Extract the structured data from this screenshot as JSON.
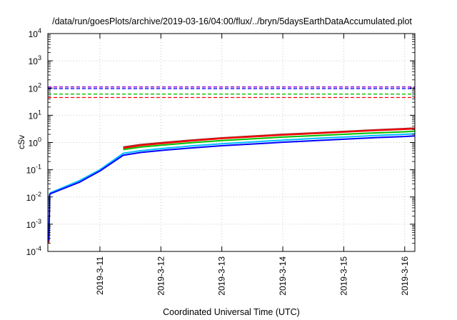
{
  "chart_data": {
    "type": "line",
    "title": "/data/run/goesPlots/archive/2019-03-16/04:00/flux/../bryn/5daysEarthDataAccumulated.plot",
    "xlabel": "Coordinated Universal Time (UTC)",
    "ylabel": "cSv",
    "yscale": "log",
    "ylim": [
      0.0001,
      10000
    ],
    "xlim": [
      "2019-03-10T03:30",
      "2019-03-16T04:00"
    ],
    "grid": true,
    "legend": "none",
    "x_ticks": [
      {
        "label": "2019-3-11",
        "t": "2019-03-11T00:00"
      },
      {
        "label": "2019-3-12",
        "t": "2019-03-12T00:00"
      },
      {
        "label": "2019-3-13",
        "t": "2019-03-13T00:00"
      },
      {
        "label": "2019-3-14",
        "t": "2019-03-14T00:00"
      },
      {
        "label": "2019-3-15",
        "t": "2019-03-15T00:00"
      },
      {
        "label": "2019-3-16",
        "t": "2019-03-16T00:00"
      }
    ],
    "y_ticks": [
      {
        "base": "10",
        "exp": "-4",
        "value": 0.0001
      },
      {
        "base": "10",
        "exp": "-3",
        "value": 0.001
      },
      {
        "base": "10",
        "exp": "-2",
        "value": 0.01
      },
      {
        "base": "10",
        "exp": "-1",
        "value": 0.1
      },
      {
        "base": "10",
        "exp": "0",
        "value": 1
      },
      {
        "base": "10",
        "exp": "1",
        "value": 10
      },
      {
        "base": "10",
        "exp": "2",
        "value": 100
      },
      {
        "base": "10",
        "exp": "3",
        "value": 1000
      },
      {
        "base": "10",
        "exp": "4",
        "value": 10000
      }
    ],
    "thresholds": [
      {
        "color": "#9400d3",
        "value": 110
      },
      {
        "color": "#0000ff",
        "value": 95
      },
      {
        "color": "#00c000",
        "value": 60
      },
      {
        "color": "#ff0000",
        "value": 45
      }
    ],
    "series": [
      {
        "color": "#a52a2a",
        "segments": [
          [
            [
              "2019-03-10T03:50",
              0.0002
            ],
            [
              "2019-03-10T04:00",
              0.0003
            ],
            [
              "2019-03-10T04:10",
              0.011
            ],
            [
              "2019-03-10T04:20",
              0.013
            ]
          ],
          [
            [
              "2019-03-11T09:10",
              0.68
            ],
            [
              "2019-03-11T16:00",
              0.84
            ],
            [
              "2019-03-12T02:00",
              1.02
            ],
            [
              "2019-03-12T13:00",
              1.25
            ],
            [
              "2019-03-13T00:00",
              1.48
            ],
            [
              "2019-03-13T12:00",
              1.72
            ],
            [
              "2019-03-14T00:00",
              2.0
            ],
            [
              "2019-03-14T12:00",
              2.25
            ],
            [
              "2019-03-15T00:00",
              2.55
            ],
            [
              "2019-03-15T12:00",
              2.9
            ],
            [
              "2019-03-16T00:00",
              3.25
            ],
            [
              "2019-03-16T04:00",
              3.4
            ]
          ]
        ]
      },
      {
        "color": "#ff0000",
        "segments": [
          [
            [
              "2019-03-10T03:50",
              0.00025
            ],
            [
              "2019-03-10T04:00",
              0.0004
            ],
            [
              "2019-03-10T04:10",
              0.012
            ],
            [
              "2019-03-10T04:20",
              0.0135
            ]
          ],
          [
            [
              "2019-03-11T09:10",
              0.62
            ],
            [
              "2019-03-11T16:00",
              0.78
            ],
            [
              "2019-03-12T02:00",
              0.95
            ],
            [
              "2019-03-12T13:00",
              1.17
            ],
            [
              "2019-03-13T00:00",
              1.4
            ],
            [
              "2019-03-13T12:00",
              1.62
            ],
            [
              "2019-03-14T00:00",
              1.88
            ],
            [
              "2019-03-14T12:00",
              2.12
            ],
            [
              "2019-03-15T00:00",
              2.42
            ],
            [
              "2019-03-15T12:00",
              2.75
            ],
            [
              "2019-03-16T00:00",
              3.05
            ],
            [
              "2019-03-16T04:00",
              3.2
            ]
          ]
        ]
      },
      {
        "color": "#00c000",
        "segments": [
          [
            [
              "2019-03-10T03:50",
              0.0003
            ],
            [
              "2019-03-10T04:00",
              0.001
            ],
            [
              "2019-03-10T04:10",
              0.012
            ],
            [
              "2019-03-10T04:20",
              0.014
            ]
          ],
          [
            [
              "2019-03-11T09:10",
              0.55
            ],
            [
              "2019-03-11T16:00",
              0.68
            ],
            [
              "2019-03-12T02:00",
              0.82
            ],
            [
              "2019-03-12T13:00",
              1.0
            ],
            [
              "2019-03-13T00:00",
              1.18
            ],
            [
              "2019-03-13T12:00",
              1.36
            ],
            [
              "2019-03-14T00:00",
              1.58
            ],
            [
              "2019-03-14T12:00",
              1.78
            ],
            [
              "2019-03-15T00:00",
              2.0
            ],
            [
              "2019-03-15T12:00",
              2.25
            ],
            [
              "2019-03-16T00:00",
              2.48
            ],
            [
              "2019-03-16T04:00",
              2.6
            ]
          ]
        ]
      },
      {
        "color": "#00bfff",
        "segments": [
          [
            [
              "2019-03-10T03:50",
              0.0003
            ],
            [
              "2019-03-10T04:00",
              0.001
            ],
            [
              "2019-03-10T04:10",
              0.012
            ],
            [
              "2019-03-10T04:20",
              0.014
            ]
          ],
          [
            [
              "2019-03-10T04:20",
              0.014
            ],
            [
              "2019-03-10T16:00",
              0.04
            ],
            [
              "2019-03-11T00:00",
              0.1
            ],
            [
              "2019-03-11T09:10",
              0.4
            ],
            [
              "2019-03-11T16:00",
              0.5
            ],
            [
              "2019-03-12T02:00",
              0.62
            ],
            [
              "2019-03-12T13:00",
              0.76
            ],
            [
              "2019-03-13T00:00",
              0.9
            ],
            [
              "2019-03-13T12:00",
              1.05
            ],
            [
              "2019-03-14T00:00",
              1.22
            ],
            [
              "2019-03-14T12:00",
              1.4
            ],
            [
              "2019-03-15T00:00",
              1.58
            ],
            [
              "2019-03-15T12:00",
              1.8
            ],
            [
              "2019-03-16T00:00",
              2.0
            ],
            [
              "2019-03-16T04:00",
              2.1
            ]
          ]
        ]
      },
      {
        "color": "#0000ff",
        "segments": [
          [
            [
              "2019-03-10T03:50",
              0.00025
            ],
            [
              "2019-03-10T04:00",
              0.0008
            ],
            [
              "2019-03-10T04:10",
              0.011
            ],
            [
              "2019-03-10T04:20",
              0.013
            ]
          ],
          [
            [
              "2019-03-10T04:20",
              0.013
            ],
            [
              "2019-03-10T16:00",
              0.035
            ],
            [
              "2019-03-11T00:00",
              0.09
            ],
            [
              "2019-03-11T09:10",
              0.34
            ],
            [
              "2019-03-11T16:00",
              0.43
            ],
            [
              "2019-03-12T02:00",
              0.53
            ],
            [
              "2019-03-12T13:00",
              0.64
            ],
            [
              "2019-03-13T00:00",
              0.76
            ],
            [
              "2019-03-13T12:00",
              0.88
            ],
            [
              "2019-03-14T00:00",
              1.02
            ],
            [
              "2019-03-14T12:00",
              1.16
            ],
            [
              "2019-03-15T00:00",
              1.32
            ],
            [
              "2019-03-15T12:00",
              1.5
            ],
            [
              "2019-03-16T00:00",
              1.66
            ],
            [
              "2019-03-16T04:00",
              1.75
            ]
          ]
        ]
      }
    ]
  }
}
